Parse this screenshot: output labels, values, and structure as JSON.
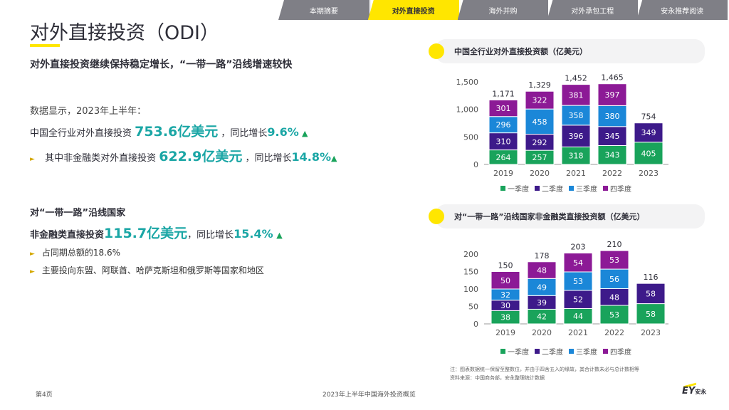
{
  "tabs": [
    {
      "label": "本期摘要",
      "active": false
    },
    {
      "label": "对外直接投资",
      "active": true
    },
    {
      "label": "海外并购",
      "active": false
    },
    {
      "label": "对外承包工程",
      "active": false
    },
    {
      "label": "安永推荐阅读",
      "active": false
    }
  ],
  "title": "对外直接投资（ODI）",
  "subtitle": "对外直接投资继续保持稳定增长，“一带一路”沿线增速较快",
  "intro": "数据显示，2023年上半年：",
  "total": {
    "prefix": "中国全行业对外直接投资",
    "value": "753.6亿美元",
    "mid": "，同比增长",
    "growth": "9.6%",
    "arrow": "▲"
  },
  "nonfin": {
    "bullet": "►",
    "prefix": "其中非金融类对外直接投资",
    "value": "622.9亿美元",
    "mid": "，同比增长",
    "growth": "14.8%",
    "arrow": "▲"
  },
  "bri": {
    "heading": "对“一带一路”沿线国家",
    "prefix": "非金融类直接投资",
    "value": "115.7亿美元",
    "mid": "，同比增长",
    "growth": "15.4%",
    "arrow": "▲",
    "bullets": [
      "占同期总额的18.6%",
      "主要投向东盟、阿联酋、哈萨克斯坦和俄罗斯等国家和地区"
    ]
  },
  "chart_titles": [
    "中国全行业对外直接投资额（亿美元）",
    "对“一带一路”沿线国家非金融类直接投资额（亿美元）"
  ],
  "chart_data": [
    {
      "type": "bar",
      "stacked": true,
      "title": "中国全行业对外直接投资额（亿美元）",
      "categories": [
        "2019",
        "2020",
        "2021",
        "2022",
        "2023"
      ],
      "series": [
        {
          "name": "一季度",
          "color": "#19a35b",
          "values": [
            264,
            257,
            318,
            343,
            405
          ]
        },
        {
          "name": "二季度",
          "color": "#3d1a8a",
          "values": [
            310,
            292,
            396,
            345,
            349
          ]
        },
        {
          "name": "三季度",
          "color": "#1b87d8",
          "values": [
            296,
            458,
            358,
            380,
            null
          ]
        },
        {
          "name": "四季度",
          "color": "#8c1a96",
          "values": [
            301,
            322,
            381,
            397,
            null
          ]
        }
      ],
      "totals": [
        "1,171",
        "1,329",
        "1,452",
        "1,465",
        "754"
      ],
      "yticks": [
        "0",
        "500",
        "1,000",
        "1,500"
      ],
      "ylim": [
        0,
        1500
      ]
    },
    {
      "type": "bar",
      "stacked": true,
      "title": "对“一带一路”沿线国家非金融类直接投资额（亿美元）",
      "categories": [
        "2019",
        "2020",
        "2021",
        "2022",
        "2023"
      ],
      "series": [
        {
          "name": "一季度",
          "color": "#19a35b",
          "values": [
            38,
            42,
            44,
            53,
            58
          ]
        },
        {
          "name": "二季度",
          "color": "#3d1a8a",
          "values": [
            30,
            39,
            52,
            48,
            58
          ]
        },
        {
          "name": "三季度",
          "color": "#1b87d8",
          "values": [
            32,
            49,
            53,
            56,
            null
          ]
        },
        {
          "name": "四季度",
          "color": "#8c1a96",
          "values": [
            50,
            48,
            54,
            53,
            null
          ]
        }
      ],
      "totals": [
        "150",
        "178",
        "203",
        "210",
        "116"
      ],
      "yticks": [
        "0",
        "50",
        "100",
        "150",
        "200"
      ],
      "ylim": [
        0,
        200
      ]
    }
  ],
  "note": "注：图表数据统一保留至整数位，并由于四舍五入的缘故，其合计数未必与总计数相等",
  "source": "资料来源：中国商务部，安永整理统计数据",
  "footer": {
    "page": "第4页",
    "center": "2023年上半年中国海外投资概览",
    "logo": "EY",
    "logo_cn": "安永"
  }
}
